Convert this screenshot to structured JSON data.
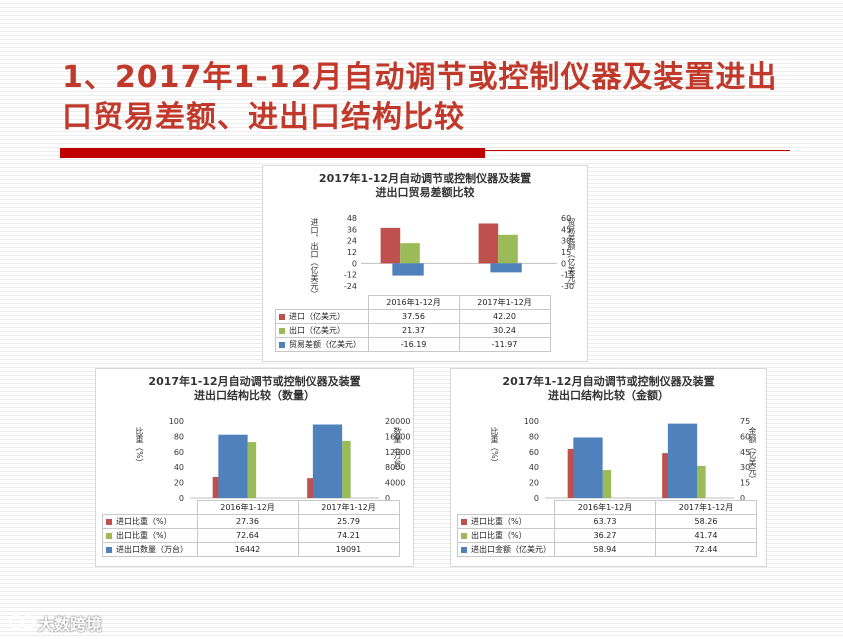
{
  "page": {
    "title": "1、2017年1-12月自动调节或控制仪器及装置进出口贸易差额、进出口结构比较",
    "watermark": "大数跨境"
  },
  "colors": {
    "red": "#c0504d",
    "green": "#9bbb59",
    "blue": "#4f81bd",
    "accent": "#c00000"
  },
  "chart_data": [
    {
      "type": "bar",
      "title_line1": "2017年1-12月自动调节或控制仪器及装置",
      "title_line2": "进出口贸易差额比较",
      "categories": [
        "2016年1-12月",
        "2017年1-12月"
      ],
      "ylabel_left": "进口、出口（亿美元）",
      "ylabel_right": "贸易差额（亿美元）",
      "y_left": {
        "min": -24,
        "max": 48,
        "ticks": [
          "48",
          "36",
          "24",
          "12",
          "0",
          "-12",
          "-24"
        ]
      },
      "y_right": {
        "min": -30,
        "max": 60,
        "ticks": [
          "60",
          "45",
          "30",
          "15",
          "0",
          "-15",
          "-30"
        ]
      },
      "series": [
        {
          "name": "进口（亿美元）",
          "axis": "left",
          "color": "#c0504d",
          "values": [
            37.56,
            42.2
          ],
          "labels": [
            "37.56",
            "42.20"
          ]
        },
        {
          "name": "出口（亿美元）",
          "axis": "left",
          "color": "#9bbb59",
          "values": [
            21.37,
            30.24
          ],
          "labels": [
            "21.37",
            "30.24"
          ]
        },
        {
          "name": "贸易差额（亿美元）",
          "axis": "right",
          "color": "#4f81bd",
          "values": [
            -16.19,
            -11.97
          ],
          "labels": [
            "-16.19",
            "-11.97"
          ]
        }
      ],
      "legend": "data-table"
    },
    {
      "type": "bar",
      "title_line1": "2017年1-12月自动调节或控制仪器及装置",
      "title_line2": "进出口结构比较（数量）",
      "categories": [
        "2016年1-12月",
        "2017年1-12月"
      ],
      "ylabel_left": "比重（%）",
      "ylabel_right": "数量（万台）",
      "y_left": {
        "min": 0,
        "max": 100,
        "ticks": [
          "100",
          "80",
          "60",
          "40",
          "20",
          "0"
        ]
      },
      "y_right": {
        "min": 0,
        "max": 20000,
        "ticks": [
          "20000",
          "16000",
          "12000",
          "8000",
          "4000",
          "0"
        ]
      },
      "series": [
        {
          "name": "进口比重（%）",
          "axis": "left",
          "color": "#c0504d",
          "values": [
            27.36,
            25.79
          ],
          "labels": [
            "27.36",
            "25.79"
          ]
        },
        {
          "name": "出口比重（%）",
          "axis": "left",
          "color": "#9bbb59",
          "values": [
            72.64,
            74.21
          ],
          "labels": [
            "72.64",
            "74.21"
          ]
        },
        {
          "name": "进出口数量（万台）",
          "axis": "right",
          "color": "#4f81bd",
          "values": [
            16442,
            19091
          ],
          "labels": [
            "16442",
            "19091"
          ]
        }
      ],
      "legend": "data-table"
    },
    {
      "type": "bar",
      "title_line1": "2017年1-12月自动调节或控制仪器及装置",
      "title_line2": "进出口结构比较（金额）",
      "categories": [
        "2016年1-12月",
        "2017年1-12月"
      ],
      "ylabel_left": "比重（%）",
      "ylabel_right": "金额（亿美元）",
      "y_left": {
        "min": 0,
        "max": 100,
        "ticks": [
          "100",
          "80",
          "60",
          "40",
          "20",
          "0"
        ]
      },
      "y_right": {
        "min": 0,
        "max": 75,
        "ticks": [
          "75",
          "60",
          "45",
          "30",
          "15",
          "0"
        ]
      },
      "series": [
        {
          "name": "进口比重（%）",
          "axis": "left",
          "color": "#c0504d",
          "values": [
            63.73,
            58.26
          ],
          "labels": [
            "63.73",
            "58.26"
          ]
        },
        {
          "name": "出口比重（%）",
          "axis": "left",
          "color": "#9bbb59",
          "values": [
            36.27,
            41.74
          ],
          "labels": [
            "36.27",
            "41.74"
          ]
        },
        {
          "name": "进出口金额（亿美元）",
          "axis": "right",
          "color": "#4f81bd",
          "values": [
            58.94,
            72.44
          ],
          "labels": [
            "58.94",
            "72.44"
          ]
        }
      ],
      "legend": "data-table"
    }
  ]
}
